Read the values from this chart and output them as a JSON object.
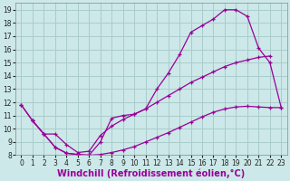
{
  "xlabel": "Windchill (Refroidissement éolien,°C)",
  "bg_color": "#cce8e8",
  "line_color": "#990099",
  "xlim": [
    -0.5,
    23.5
  ],
  "ylim": [
    8,
    19.5
  ],
  "xticks": [
    0,
    1,
    2,
    3,
    4,
    5,
    6,
    7,
    8,
    9,
    10,
    11,
    12,
    13,
    14,
    15,
    16,
    17,
    18,
    19,
    20,
    21,
    22,
    23
  ],
  "yticks": [
    8,
    9,
    10,
    11,
    12,
    13,
    14,
    15,
    16,
    17,
    18,
    19
  ],
  "line1_x": [
    0,
    1,
    2,
    3,
    4,
    5,
    6,
    7,
    8,
    9,
    10,
    11,
    12,
    13,
    14,
    15,
    16,
    17,
    18,
    19,
    20,
    21,
    22,
    23
  ],
  "line1_y": [
    11.8,
    10.6,
    9.6,
    8.6,
    8.15,
    8.05,
    8.0,
    8.05,
    8.2,
    8.4,
    8.65,
    9.0,
    9.35,
    9.7,
    10.1,
    10.5,
    10.9,
    11.25,
    11.5,
    11.65,
    11.7,
    11.65,
    11.6,
    11.6
  ],
  "line2_x": [
    0,
    1,
    2,
    3,
    4,
    5,
    6,
    7,
    8,
    9,
    10,
    11,
    12,
    13,
    14,
    15,
    16,
    17,
    18,
    19,
    20,
    21,
    22,
    23
  ],
  "line2_y": [
    11.8,
    10.6,
    9.6,
    8.6,
    8.15,
    8.05,
    8.0,
    9.0,
    10.8,
    11.0,
    11.1,
    11.5,
    13.0,
    14.2,
    15.6,
    17.3,
    17.8,
    18.3,
    19.0,
    19.0,
    18.5,
    16.1,
    15.0,
    11.6
  ],
  "line3_x": [
    1,
    2,
    3,
    4,
    5,
    6,
    7,
    8,
    9,
    10,
    11,
    12,
    13,
    14,
    15,
    16,
    17,
    18,
    19,
    20,
    21,
    22
  ],
  "line3_y": [
    10.6,
    9.6,
    9.6,
    8.8,
    8.2,
    8.3,
    9.5,
    10.2,
    10.7,
    11.1,
    11.5,
    12.0,
    12.5,
    13.0,
    13.5,
    13.9,
    14.3,
    14.7,
    15.0,
    15.2,
    15.4,
    15.5
  ],
  "grid_color": "#aacccc",
  "tick_fontsize": 5.5,
  "xlabel_fontsize": 7
}
